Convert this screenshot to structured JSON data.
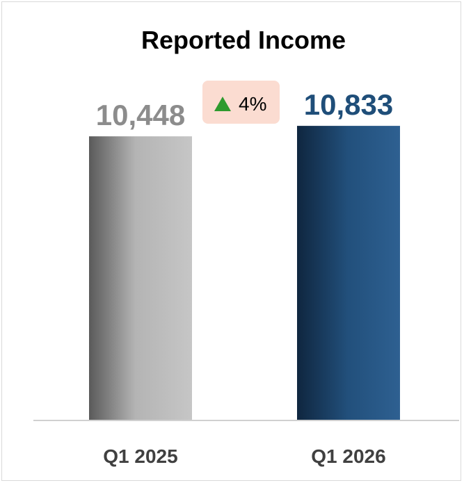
{
  "chart_data": {
    "type": "bar",
    "title": "Reported Income",
    "categories": [
      "Q1 2025",
      "Q1 2026"
    ],
    "values": [
      10448,
      10833
    ],
    "value_labels": [
      "10,448",
      "10,833"
    ],
    "colors": {
      "Q1 2025": "#a6a6a6",
      "Q1 2026": "#1f4e79",
      "label_prior": "#8c8c8c",
      "label_current": "#1f4e79"
    },
    "change_badge": {
      "text": "4%",
      "icon": "up-triangle-icon",
      "icon_color": "#2e9a2e",
      "background": "#fbdcd1"
    },
    "ylim": [
      0,
      11500
    ],
    "xlabel": "",
    "ylabel": "",
    "grid": false,
    "legend": "none"
  }
}
